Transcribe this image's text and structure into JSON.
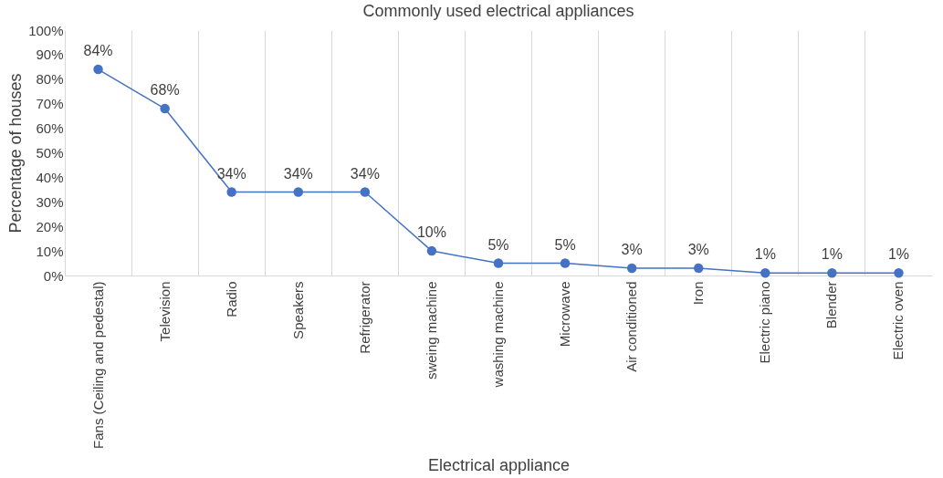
{
  "chart_data": {
    "type": "line",
    "title": "Commonly used electrical appliances",
    "xlabel": "Electrical appliance",
    "ylabel": "Percentage of houses",
    "categories": [
      "Fans (Ceiling and pedestal)",
      "Television",
      "Radio",
      "Speakers",
      "Refrigerator",
      "sweing machine",
      "washing machine",
      "Microwave",
      "Air conditioned",
      "Iron",
      "Electric piano",
      "Blender",
      "Electric oven"
    ],
    "series": [
      {
        "color": "#4472c4",
        "values": [
          84,
          68,
          34,
          34,
          34,
          10,
          5,
          5,
          3,
          3,
          1,
          1,
          1
        ],
        "value_labels": [
          "84%",
          "68%",
          "34%",
          "34%",
          "34%",
          "10%",
          "5%",
          "5%",
          "3%",
          "3%",
          "1%",
          "1%",
          "1%"
        ]
      }
    ],
    "ylim": [
      0,
      100
    ],
    "yticks": [
      {
        "value": 0,
        "label": "0%"
      },
      {
        "value": 10,
        "label": "10%"
      },
      {
        "value": 20,
        "label": "20%"
      },
      {
        "value": 30,
        "label": "30%"
      },
      {
        "value": 40,
        "label": "40%"
      },
      {
        "value": 50,
        "label": "50%"
      },
      {
        "value": 60,
        "label": "60%"
      },
      {
        "value": 70,
        "label": "70%"
      },
      {
        "value": 80,
        "label": "80%"
      },
      {
        "value": 90,
        "label": "90%"
      },
      {
        "value": 100,
        "label": "100%"
      }
    ],
    "grid": "x",
    "marker": "circle",
    "line_style": "solid",
    "legend": false
  }
}
